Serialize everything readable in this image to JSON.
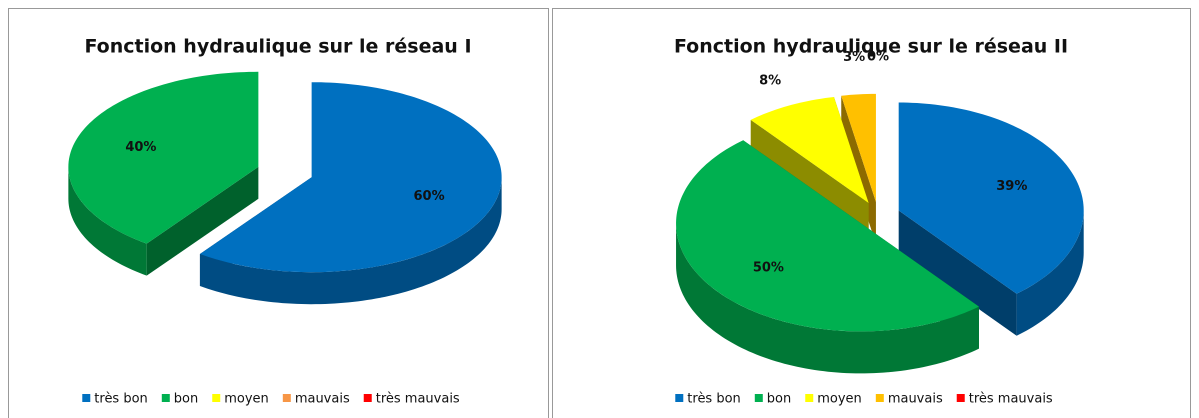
{
  "chart_data": [
    {
      "type": "pie",
      "title": "Fonction hydraulique sur le réseau I",
      "categories": [
        "très bon",
        "bon",
        "moyen",
        "mauvais",
        "très mauvais"
      ],
      "values": [
        60,
        40,
        0,
        0,
        0
      ],
      "value_labels": [
        "60%",
        "40%",
        null,
        null,
        null
      ],
      "colors": [
        "#0070c0",
        "#00b050",
        "#ffff00",
        "#f79646",
        "#ff0000"
      ],
      "legend": "bottom"
    },
    {
      "type": "pie",
      "title": "Fonction hydraulique sur le réseau II",
      "categories": [
        "très bon",
        "bon",
        "moyen",
        "mauvais",
        "très mauvais"
      ],
      "values": [
        39,
        50,
        8,
        3,
        0
      ],
      "value_labels": [
        "39%",
        "50%",
        "8%",
        "3%",
        "0%"
      ],
      "colors": [
        "#0070c0",
        "#00b050",
        "#ffff00",
        "#ffc000",
        "#ff0000"
      ],
      "legend": "bottom"
    }
  ]
}
